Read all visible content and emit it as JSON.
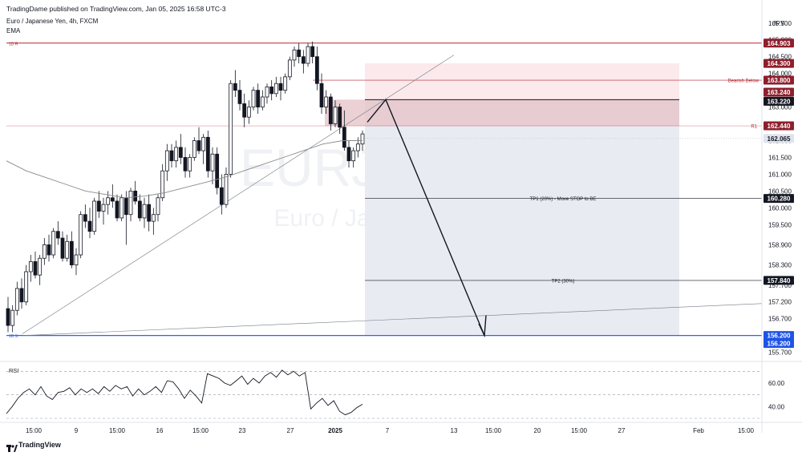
{
  "header": {
    "published": "TradingDame published on TradingView.com, Jan 05, 2025 16:58 UTC-3",
    "symbol": "Euro / Japanese Yen, 4h, FXCM",
    "indicator": "EMA"
  },
  "watermark": {
    "ticker": "EURJPY, 4h",
    "name": "Euro / Japanese Yen"
  },
  "footer": {
    "brand": "TradingView"
  },
  "colors": {
    "up": "#131722",
    "down": "#131722",
    "resistance": "#b22833",
    "support": "#2962ff",
    "zone": "#e6c4c9",
    "target_box": "#e9ebf3",
    "stop_box": "#fbe9ec",
    "badge_dark": "#131722",
    "badge_red": "#8e1f2c",
    "badge_blue": "#1e53e5"
  },
  "chart_data": {
    "type": "candlestick",
    "currency": "JPY",
    "y_axis_ticks": [
      "165.500",
      "165.000",
      "164.500",
      "164.000",
      "163.000",
      "162.000",
      "161.500",
      "161.000",
      "160.500",
      "160.000",
      "159.500",
      "158.900",
      "158.300",
      "157.700",
      "157.200",
      "156.700",
      "156.200",
      "155.700"
    ],
    "x_axis_labels": [
      "15:00",
      "9",
      "15:00",
      "16",
      "15:00",
      "23",
      "27",
      "2025",
      "7",
      "13",
      "15:00",
      "20",
      "15:00",
      "27",
      "Feb",
      "15:00"
    ],
    "ylim": [
      155.5,
      165.9
    ],
    "price_labels": [
      {
        "text": "164.903",
        "style": "red"
      },
      {
        "text": "164.300",
        "style": "red"
      },
      {
        "text": "163.800",
        "style": "red"
      },
      {
        "text": "163.240",
        "style": "red"
      },
      {
        "text": "163.220",
        "style": "dark"
      },
      {
        "text": "162.440",
        "style": "red"
      },
      {
        "text": "162.065",
        "style": "gray"
      },
      {
        "text": "160.280",
        "style": "dark"
      },
      {
        "text": "157.840",
        "style": "dark"
      },
      {
        "text": "156.200",
        "style": "blue"
      },
      {
        "text": "156.200",
        "style": "blue"
      }
    ],
    "levels": [
      {
        "label": "1D R",
        "price": 164.903
      },
      {
        "label": "Bearish Below",
        "price": 163.8
      },
      {
        "label": "R1",
        "price": 162.44
      },
      {
        "label": "TP1 (20%) - Move STOP to BE",
        "price": 160.28
      },
      {
        "label": "TP2 (30%)",
        "price": 157.84
      },
      {
        "label": "1D S",
        "price": 156.2
      }
    ],
    "candles_ohlc": [
      [
        157.0,
        157.35,
        156.3,
        156.5
      ],
      [
        156.5,
        157.1,
        156.3,
        156.95
      ],
      [
        156.95,
        157.8,
        156.8,
        157.6
      ],
      [
        157.6,
        157.9,
        157.0,
        157.2
      ],
      [
        157.2,
        158.3,
        157.1,
        158.1
      ],
      [
        158.1,
        158.6,
        157.8,
        158.4
      ],
      [
        158.4,
        158.7,
        157.9,
        158.0
      ],
      [
        158.0,
        158.6,
        157.7,
        158.5
      ],
      [
        158.5,
        159.1,
        158.3,
        158.9
      ],
      [
        158.9,
        159.2,
        158.4,
        158.6
      ],
      [
        158.6,
        159.4,
        158.5,
        159.3
      ],
      [
        159.3,
        159.6,
        158.9,
        159.1
      ],
      [
        159.1,
        159.3,
        158.4,
        158.5
      ],
      [
        158.5,
        159.2,
        158.4,
        159.0
      ],
      [
        159.0,
        159.3,
        158.2,
        158.3
      ],
      [
        158.3,
        158.8,
        158.0,
        158.6
      ],
      [
        158.6,
        159.9,
        158.5,
        159.8
      ],
      [
        159.8,
        160.1,
        159.4,
        159.6
      ],
      [
        159.6,
        160.0,
        159.1,
        159.3
      ],
      [
        159.3,
        160.3,
        159.2,
        160.2
      ],
      [
        160.2,
        160.5,
        159.7,
        159.9
      ],
      [
        159.9,
        160.3,
        159.5,
        160.1
      ],
      [
        160.1,
        160.5,
        159.8,
        160.3
      ],
      [
        160.3,
        160.7,
        160.0,
        160.2
      ],
      [
        160.2,
        160.4,
        159.6,
        159.7
      ],
      [
        159.7,
        160.4,
        159.6,
        160.3
      ],
      [
        160.3,
        160.5,
        158.9,
        159.8
      ],
      [
        159.8,
        160.6,
        159.6,
        160.5
      ],
      [
        160.5,
        160.8,
        160.1,
        160.2
      ],
      [
        160.2,
        160.4,
        159.6,
        159.7
      ],
      [
        159.7,
        160.3,
        159.4,
        160.1
      ],
      [
        160.1,
        160.4,
        159.3,
        159.6
      ],
      [
        159.6,
        160.0,
        159.2,
        159.8
      ],
      [
        159.8,
        160.4,
        159.6,
        160.3
      ],
      [
        160.3,
        161.3,
        160.2,
        161.1
      ],
      [
        161.1,
        161.9,
        160.8,
        161.7
      ],
      [
        161.7,
        161.9,
        161.2,
        161.4
      ],
      [
        161.4,
        162.0,
        161.2,
        161.8
      ],
      [
        161.8,
        162.2,
        161.3,
        161.5
      ],
      [
        161.5,
        161.8,
        160.9,
        161.1
      ],
      [
        161.1,
        161.6,
        160.9,
        161.5
      ],
      [
        161.5,
        162.1,
        161.4,
        162.0
      ],
      [
        162.0,
        162.4,
        161.6,
        161.7
      ],
      [
        161.7,
        162.2,
        161.3,
        162.1
      ],
      [
        162.1,
        162.3,
        160.9,
        161.1
      ],
      [
        161.1,
        161.8,
        160.7,
        161.6
      ],
      [
        161.6,
        161.8,
        160.4,
        160.6
      ],
      [
        160.6,
        161.0,
        159.8,
        160.1
      ],
      [
        160.1,
        161.2,
        160.0,
        161.0
      ],
      [
        161.0,
        163.8,
        160.9,
        163.7
      ],
      [
        163.7,
        164.1,
        163.3,
        163.5
      ],
      [
        163.5,
        163.8,
        162.9,
        163.1
      ],
      [
        163.1,
        163.4,
        162.4,
        162.7
      ],
      [
        162.7,
        163.2,
        162.5,
        163.0
      ],
      [
        163.0,
        163.6,
        162.9,
        163.5
      ],
      [
        163.5,
        163.7,
        162.8,
        163.0
      ],
      [
        163.0,
        163.5,
        162.9,
        163.3
      ],
      [
        163.3,
        163.7,
        163.1,
        163.6
      ],
      [
        163.6,
        163.8,
        163.2,
        163.4
      ],
      [
        163.4,
        163.9,
        163.3,
        163.7
      ],
      [
        163.7,
        163.9,
        163.2,
        163.5
      ],
      [
        163.5,
        164.0,
        163.4,
        163.9
      ],
      [
        163.9,
        164.5,
        163.8,
        164.4
      ],
      [
        164.4,
        164.8,
        164.2,
        164.7
      ],
      [
        164.7,
        164.9,
        164.3,
        164.5
      ],
      [
        164.5,
        164.7,
        164.0,
        164.3
      ],
      [
        164.3,
        164.9,
        164.2,
        164.8
      ],
      [
        164.8,
        164.95,
        164.3,
        164.5
      ],
      [
        164.5,
        164.8,
        163.5,
        163.7
      ],
      [
        163.7,
        164.0,
        162.8,
        163.0
      ],
      [
        163.0,
        163.5,
        162.8,
        163.3
      ],
      [
        163.3,
        163.4,
        162.3,
        162.5
      ],
      [
        162.5,
        163.2,
        162.4,
        163.0
      ],
      [
        163.0,
        163.1,
        162.2,
        162.4
      ],
      [
        162.4,
        162.9,
        161.7,
        161.8
      ],
      [
        161.8,
        162.0,
        161.2,
        161.4
      ],
      [
        161.4,
        161.8,
        161.2,
        161.7
      ],
      [
        161.7,
        162.1,
        161.5,
        161.9
      ],
      [
        161.9,
        162.3,
        161.7,
        162.2
      ]
    ],
    "ema": [
      161.4,
      161.1,
      160.9,
      160.7,
      160.5,
      160.4,
      160.3,
      160.35,
      160.45,
      160.6,
      160.75,
      160.9,
      161.1,
      161.3,
      161.5,
      161.7,
      161.9,
      162.0,
      162.0
    ],
    "rsi": {
      "label": "RSI",
      "ticks": [
        "60.00",
        "40.00"
      ],
      "ylim": [
        30,
        75
      ],
      "values": [
        34,
        40,
        47,
        52,
        55,
        50,
        57,
        49,
        46,
        52,
        53,
        56,
        50,
        55,
        52,
        55,
        51,
        57,
        53,
        58,
        55,
        57,
        49,
        55,
        50,
        53,
        57,
        52,
        62,
        61,
        55,
        47,
        54,
        49,
        43,
        68,
        66,
        64,
        60,
        58,
        62,
        66,
        59,
        64,
        60,
        66,
        69,
        65,
        71,
        67,
        70,
        66,
        69,
        38,
        43,
        47,
        41,
        45,
        36,
        33,
        35,
        39,
        42
      ]
    }
  }
}
